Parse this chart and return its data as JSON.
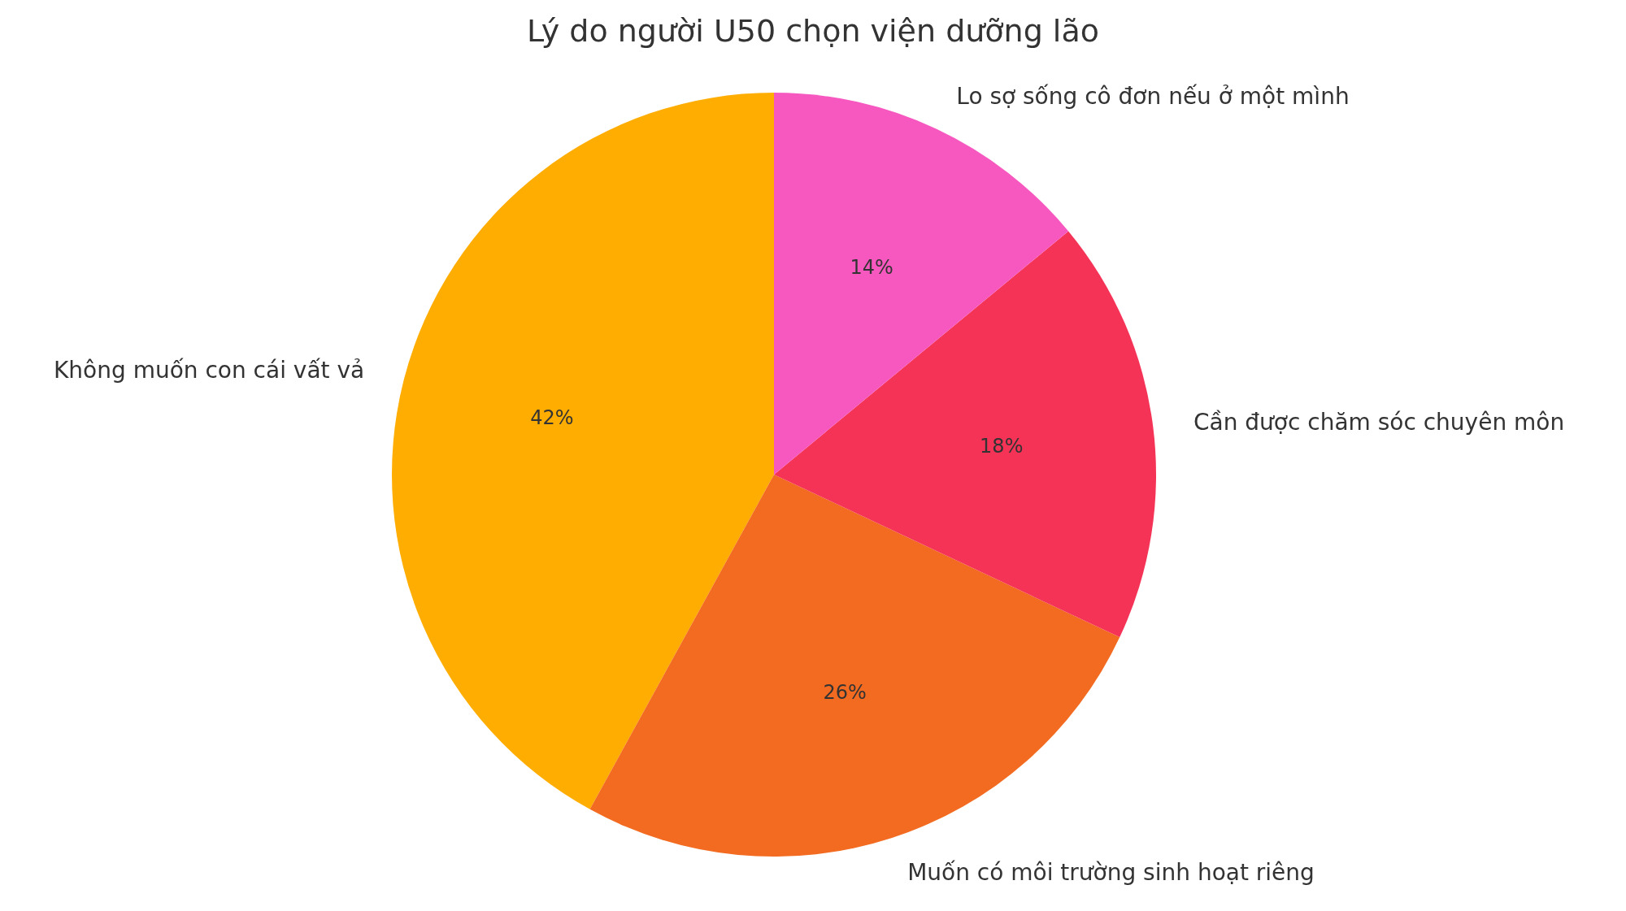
{
  "chart_data": {
    "type": "pie",
    "title": "Lý do người U50 chọn viện dưỡng lão",
    "categories": [
      "Không muốn con cái vất vả",
      "Muốn có môi trường sinh hoạt riêng",
      "Cần được chăm sóc chuyên môn",
      "Lo sợ sống cô đơn nếu ở một mình"
    ],
    "values": [
      42,
      26,
      18,
      14
    ],
    "colors": [
      "#ffad00",
      "#f26b21",
      "#f53357",
      "#f758c0"
    ],
    "value_labels": [
      "42%",
      "26%",
      "18%",
      "14%"
    ],
    "legend": false
  }
}
